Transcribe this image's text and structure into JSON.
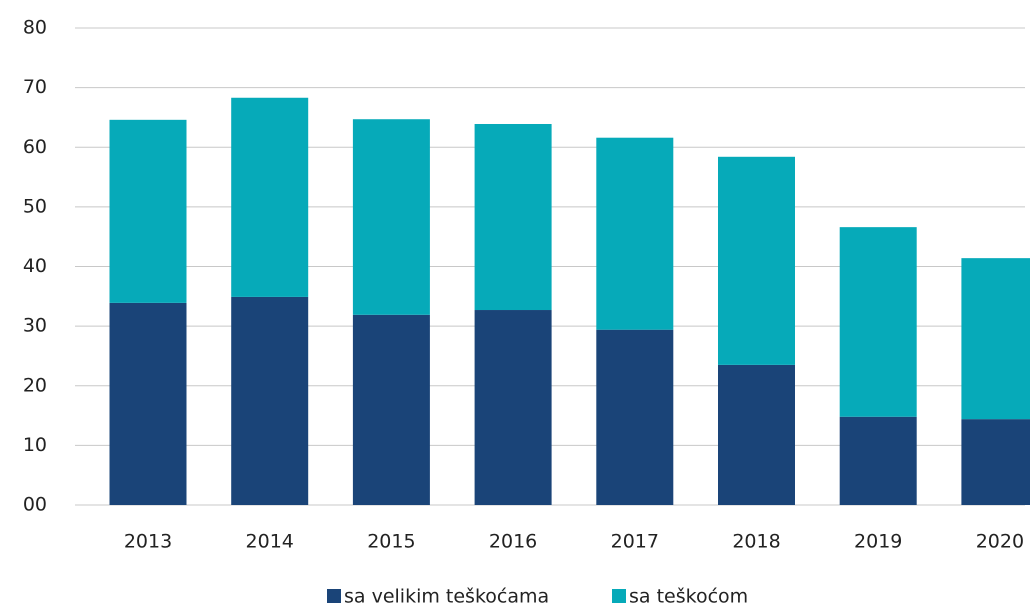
{
  "chart_data": {
    "type": "stacked_bar",
    "categories": [
      "2013",
      "2014",
      "2015",
      "2016",
      "2017",
      "2018",
      "2019",
      "2020"
    ],
    "series": [
      {
        "name": "sa velikim teškoćama",
        "color": "#1a4478",
        "values": [
          33.9,
          34.9,
          31.9,
          32.7,
          29.4,
          23.5,
          14.8,
          14.4
        ]
      },
      {
        "name": "sa teškoćom",
        "color": "#06aab9",
        "values": [
          30.7,
          33.4,
          32.8,
          31.2,
          32.2,
          34.9,
          31.8,
          27.0
        ]
      }
    ],
    "ylim": [
      0,
      80
    ],
    "yticks": [
      {
        "value": 0,
        "label": "00"
      },
      10,
      20,
      30,
      40,
      50,
      60,
      70,
      80
    ],
    "grid": true,
    "legend": "bottom"
  }
}
